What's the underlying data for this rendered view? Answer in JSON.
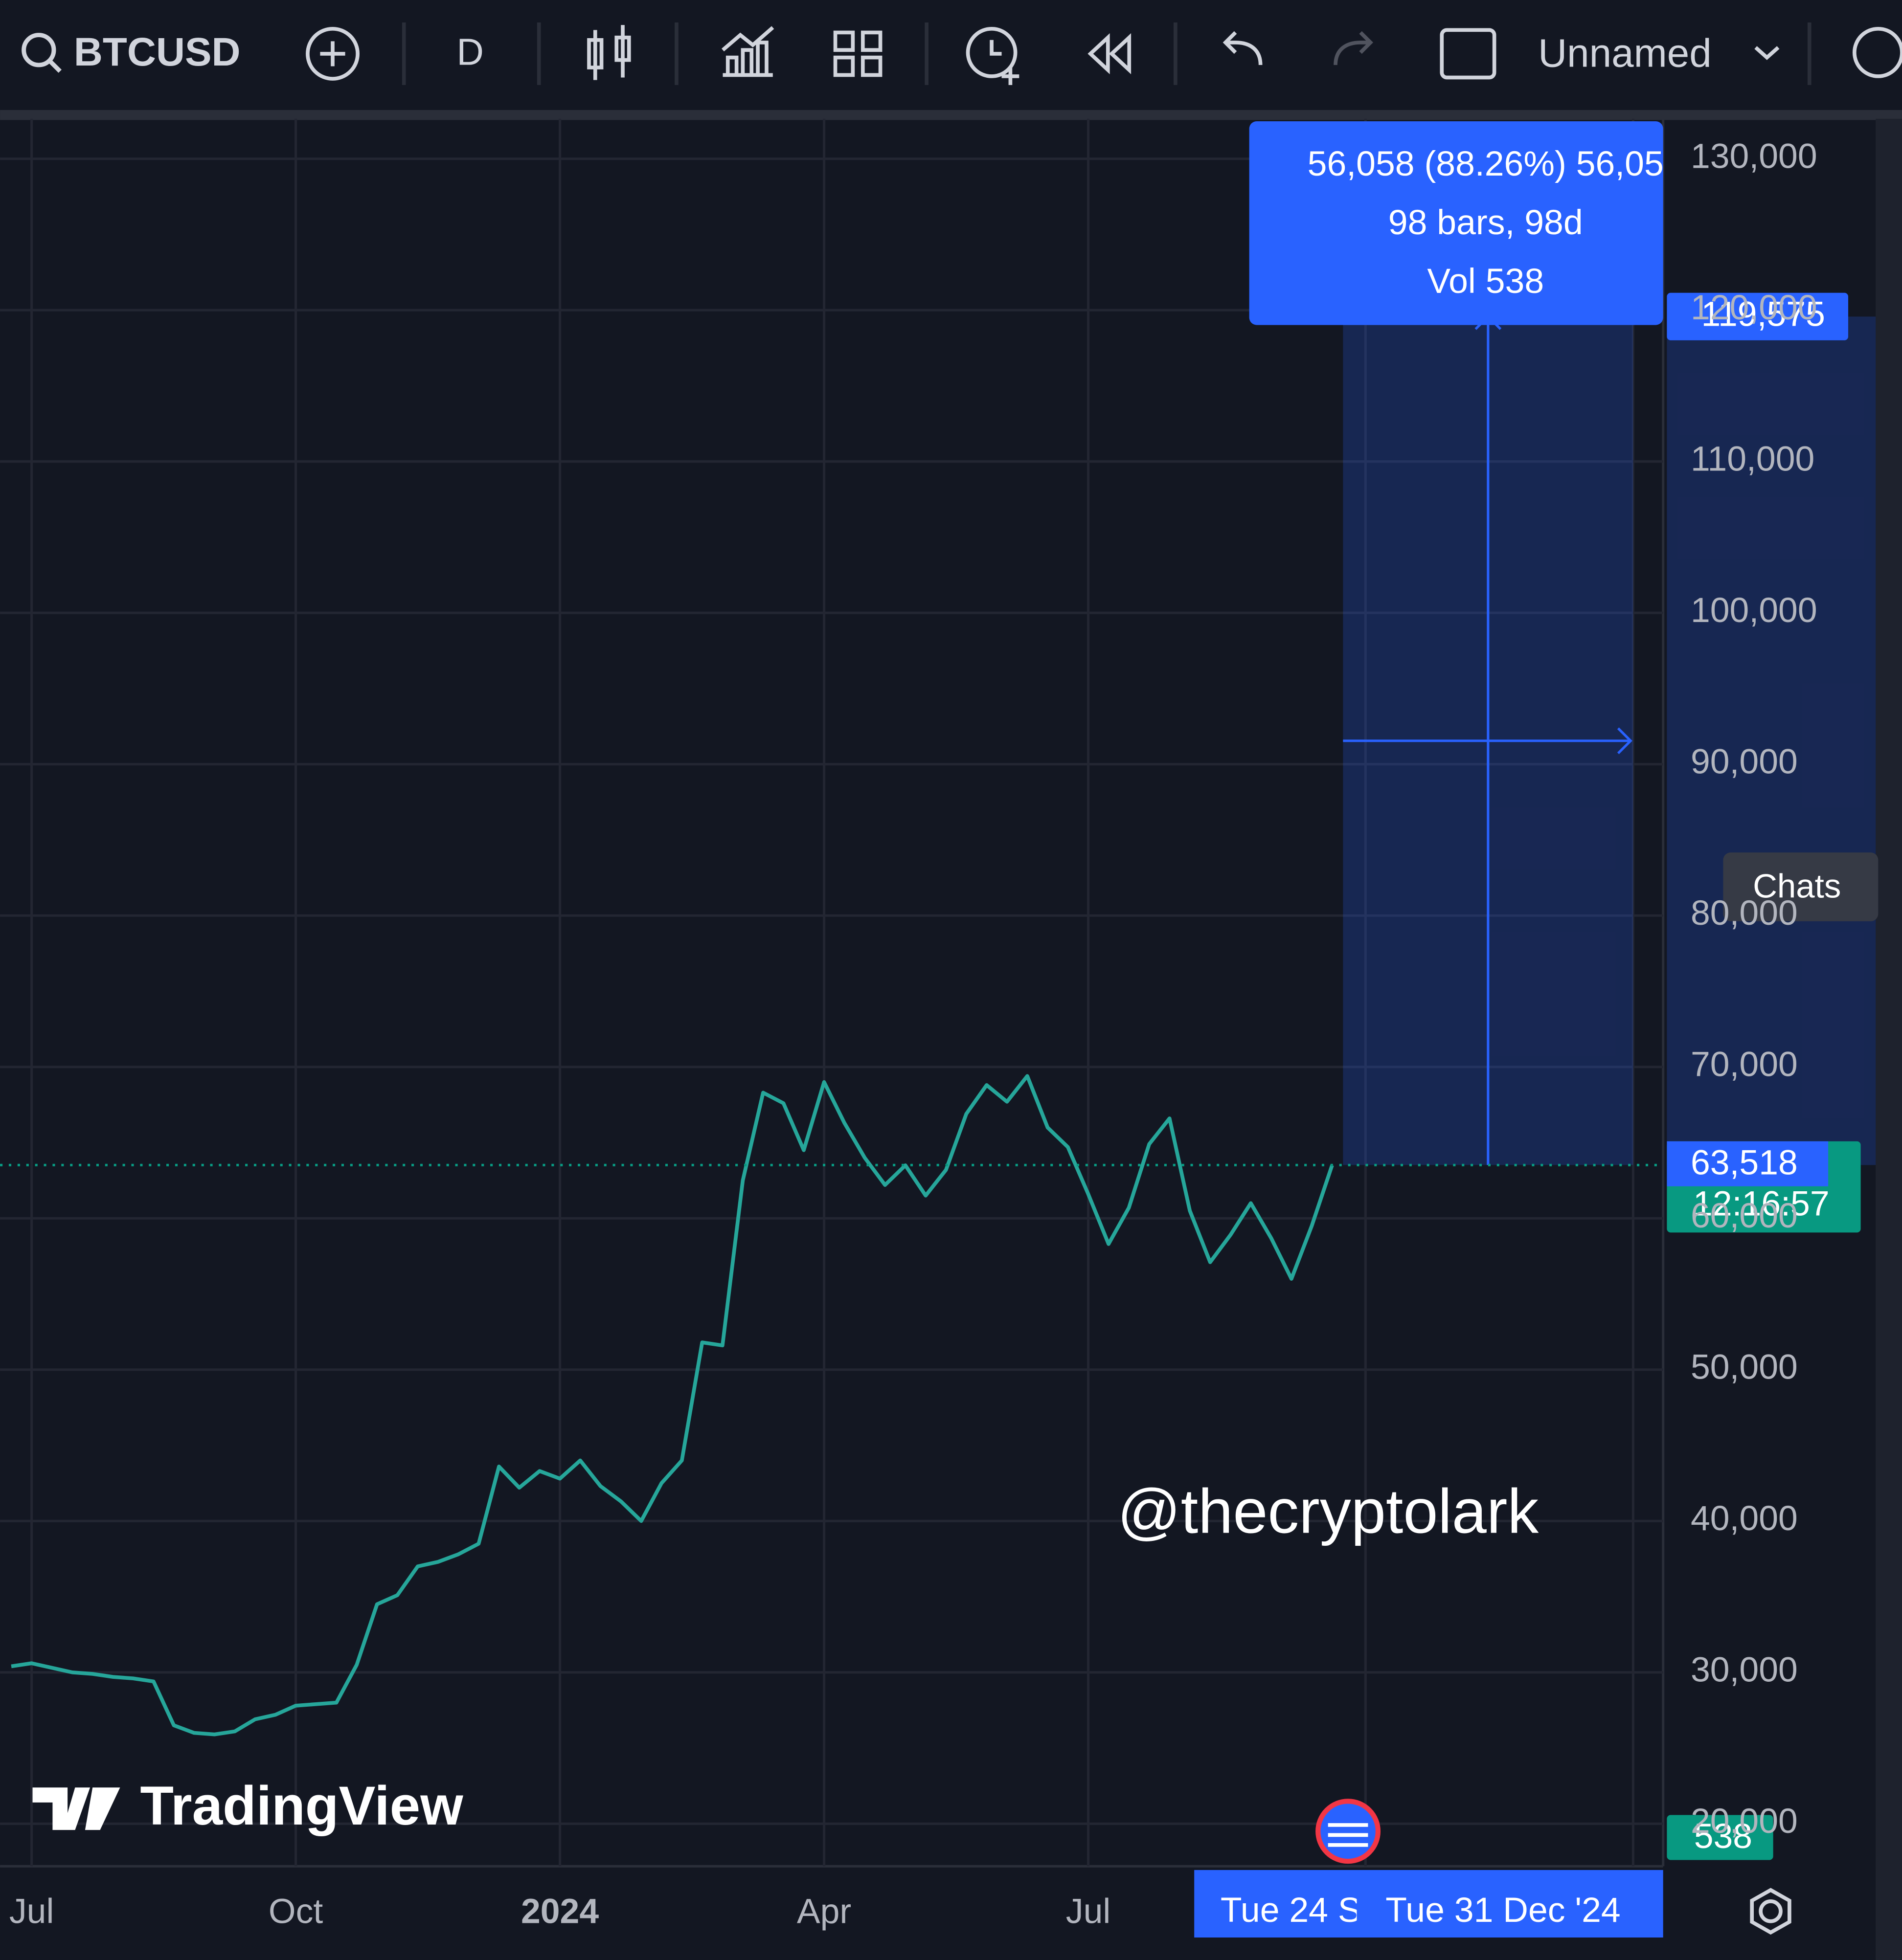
{
  "toolbar": {
    "symbol": "BTCUSD",
    "interval": "D",
    "layout": "Unnamed"
  },
  "chart_data": {
    "type": "line",
    "categories": [
      null,
      "Jul",
      null,
      null,
      null,
      null,
      null,
      null,
      null,
      null,
      null,
      null,
      null,
      null,
      "Oct",
      null,
      null,
      null,
      null,
      null,
      null,
      null,
      null,
      null,
      null,
      null,
      null,
      "2024",
      null,
      null,
      null,
      null,
      null,
      null,
      null,
      null,
      null,
      null,
      null,
      null,
      "Apr",
      null,
      null,
      null,
      null,
      null,
      null,
      null,
      null,
      null,
      null,
      null,
      null,
      "Jul",
      null,
      null,
      null,
      null,
      null,
      null,
      null,
      null,
      null,
      null,
      null,
      null
    ],
    "series": [
      {
        "name": "BTCUSD",
        "color": "#26a69a",
        "values": [
          30400,
          30600,
          30300,
          30000,
          29900,
          29700,
          29600,
          29400,
          26500,
          26000,
          25900,
          26100,
          26900,
          27200,
          27800,
          27900,
          28000,
          30500,
          34500,
          35100,
          37000,
          37300,
          37800,
          38500,
          43600,
          42200,
          43300,
          42800,
          44000,
          42300,
          41300,
          40000,
          42500,
          44000,
          51800,
          51600,
          62500,
          68300,
          67600,
          64500,
          69000,
          66300,
          64000,
          62200,
          63500,
          61500,
          63200,
          66900,
          68800,
          67700,
          69400,
          66000,
          64700,
          61600,
          58300,
          60700,
          64900,
          66600,
          60500,
          57100,
          58900,
          61000,
          58700,
          56000,
          59500,
          63500
        ]
      }
    ],
    "ylim": [
      17190,
      132645
    ],
    "yticks": [
      {
        "value": 20000,
        "label": "20,000"
      },
      {
        "value": 30000,
        "label": "30,000"
      },
      {
        "value": 40000,
        "label": "40,000"
      },
      {
        "value": 50000,
        "label": "50,000"
      },
      {
        "value": 60000,
        "label": "60,000"
      },
      {
        "value": 70000,
        "label": "70,000"
      },
      {
        "value": 80000,
        "label": "80,000"
      },
      {
        "value": 90000,
        "label": "90,000"
      },
      {
        "value": 100000,
        "label": "100,000"
      },
      {
        "value": 110000,
        "label": "110,000"
      },
      {
        "value": 120000,
        "label": "120,000"
      },
      {
        "value": 130000,
        "label": "130,000"
      }
    ],
    "grid": true,
    "price_line": {
      "value": 63518,
      "label": "63,518",
      "countdown": "12:16:57",
      "color": "#089981"
    },
    "measure": {
      "target": {
        "value": 119575,
        "label": "119,575"
      },
      "lines": [
        "56,058 (88.26%) 56,05",
        "98 bars, 98d",
        "Vol 538"
      ],
      "color": "#2962ff"
    },
    "volume_badge": 538,
    "crosshair_dates": [
      "Tue 24 S",
      "Tue 31 Dec '24"
    ]
  },
  "chats": "Chats",
  "watermark": "@thecryptolark",
  "logo": "TradingView"
}
